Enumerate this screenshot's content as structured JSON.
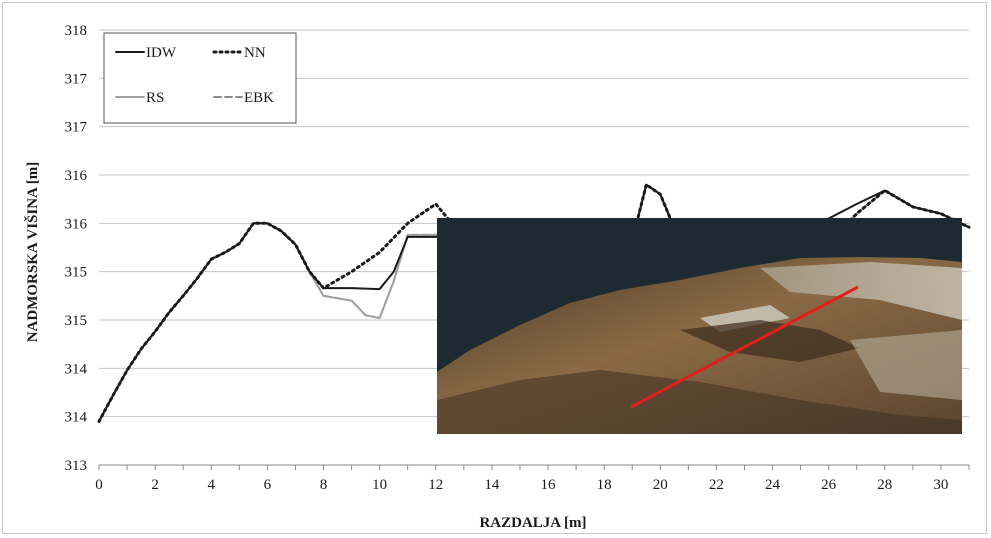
{
  "chart_data": {
    "type": "line",
    "xlabel": "RAZDALJA [m]",
    "ylabel": "NADMORSKA VIŠINA [m]",
    "x_ticks": [
      "0",
      "2",
      "4",
      "6",
      "8",
      "10",
      "12",
      "14",
      "16",
      "18",
      "20",
      "22",
      "24",
      "26",
      "28",
      "30"
    ],
    "y_ticks": [
      "313",
      "314",
      "314",
      "315",
      "315",
      "316",
      "316",
      "317",
      "317",
      "318"
    ],
    "xlim": [
      0,
      31
    ],
    "ylim": [
      313,
      317.5
    ],
    "grid": "horizontal",
    "legend_position": "top-left",
    "series": [
      {
        "name": "IDW",
        "style": "solid",
        "color": "#1a1a1a",
        "points": [
          [
            0,
            313.45
          ],
          [
            0.5,
            313.72
          ],
          [
            1,
            313.98
          ],
          [
            1.5,
            314.2
          ],
          [
            2,
            314.38
          ],
          [
            2.5,
            314.58
          ],
          [
            3,
            314.75
          ],
          [
            3.5,
            314.93
          ],
          [
            4,
            315.13
          ],
          [
            4.5,
            315.2
          ],
          [
            5,
            315.29
          ],
          [
            5.5,
            315.5
          ],
          [
            6,
            315.5
          ],
          [
            6.5,
            315.42
          ],
          [
            7,
            315.28
          ],
          [
            7.5,
            315.0
          ],
          [
            8,
            314.83
          ],
          [
            9,
            314.83
          ],
          [
            10,
            314.82
          ],
          [
            10.5,
            315.0
          ],
          [
            11,
            315.36
          ],
          [
            12,
            315.36
          ],
          [
            13,
            315.35
          ],
          [
            13.5,
            315.35
          ],
          [
            14,
            315.43
          ],
          [
            15,
            315.38
          ],
          [
            16,
            315.4
          ],
          [
            17,
            315.38
          ],
          [
            17.5,
            315.4
          ],
          [
            18,
            315.36
          ],
          [
            19,
            315.32
          ],
          [
            19.5,
            315.9
          ],
          [
            20,
            315.8
          ],
          [
            20.5,
            315.45
          ],
          [
            21,
            315.38
          ],
          [
            22,
            315.45
          ],
          [
            23,
            315.45
          ],
          [
            23.5,
            315.38
          ],
          [
            24,
            314.97
          ],
          [
            24.5,
            314.82
          ],
          [
            25,
            314.8
          ],
          [
            25.5,
            314.97
          ],
          [
            26,
            315.55
          ],
          [
            27,
            315.7
          ],
          [
            28,
            315.84
          ],
          [
            29,
            315.67
          ],
          [
            30,
            315.6
          ],
          [
            31,
            315.46
          ]
        ]
      },
      {
        "name": "NN",
        "style": "dotted",
        "color": "#1a1a1a",
        "points": [
          [
            0,
            313.45
          ],
          [
            0.5,
            313.72
          ],
          [
            1,
            313.98
          ],
          [
            1.5,
            314.2
          ],
          [
            2,
            314.38
          ],
          [
            2.5,
            314.58
          ],
          [
            3,
            314.75
          ],
          [
            3.5,
            314.93
          ],
          [
            4,
            315.13
          ],
          [
            4.5,
            315.2
          ],
          [
            5,
            315.29
          ],
          [
            5.5,
            315.5
          ],
          [
            6,
            315.5
          ],
          [
            6.5,
            315.42
          ],
          [
            7,
            315.28
          ],
          [
            7.5,
            315.0
          ],
          [
            8,
            314.83
          ],
          [
            9,
            315.0
          ],
          [
            10,
            315.2
          ],
          [
            11,
            315.5
          ],
          [
            12,
            315.7
          ],
          [
            13,
            315.35
          ],
          [
            13.5,
            315.35
          ],
          [
            14,
            315.43
          ],
          [
            15,
            315.38
          ],
          [
            16,
            315.4
          ],
          [
            17,
            315.38
          ],
          [
            17.5,
            315.4
          ],
          [
            18,
            315.36
          ],
          [
            19,
            315.32
          ],
          [
            19.5,
            315.9
          ],
          [
            20,
            315.8
          ],
          [
            20.5,
            315.45
          ],
          [
            21,
            315.38
          ],
          [
            22,
            315.45
          ],
          [
            23,
            315.2
          ],
          [
            24,
            315.15
          ],
          [
            25,
            315.13
          ],
          [
            26,
            315.3
          ],
          [
            27,
            315.6
          ],
          [
            28,
            315.84
          ],
          [
            29,
            315.67
          ],
          [
            30,
            315.6
          ],
          [
            31,
            315.46
          ]
        ]
      },
      {
        "name": "RS",
        "style": "solid",
        "color": "#a0a0a0",
        "points": [
          [
            0,
            313.45
          ],
          [
            0.5,
            313.72
          ],
          [
            1,
            313.98
          ],
          [
            1.5,
            314.2
          ],
          [
            2,
            314.38
          ],
          [
            2.5,
            314.58
          ],
          [
            3,
            314.75
          ],
          [
            3.5,
            314.93
          ],
          [
            4,
            315.13
          ],
          [
            4.5,
            315.2
          ],
          [
            5,
            315.29
          ],
          [
            5.5,
            315.5
          ],
          [
            6,
            315.5
          ],
          [
            6.5,
            315.42
          ],
          [
            7,
            315.28
          ],
          [
            7.5,
            315.0
          ],
          [
            8,
            314.75
          ],
          [
            9,
            314.7
          ],
          [
            9.5,
            314.55
          ],
          [
            10,
            314.52
          ],
          [
            10.5,
            314.9
          ],
          [
            11,
            315.38
          ],
          [
            12,
            315.38
          ],
          [
            13,
            315.35
          ],
          [
            13.5,
            315.35
          ],
          [
            14,
            315.43
          ],
          [
            15,
            315.38
          ],
          [
            16,
            315.4
          ],
          [
            17,
            315.38
          ],
          [
            17.5,
            315.4
          ],
          [
            18,
            315.36
          ],
          [
            19,
            315.32
          ],
          [
            19.5,
            315.9
          ],
          [
            20,
            315.8
          ],
          [
            20.5,
            315.45
          ],
          [
            21,
            315.38
          ],
          [
            22,
            315.48
          ],
          [
            23,
            315.3
          ],
          [
            23.5,
            315.2
          ],
          [
            24,
            315.18
          ],
          [
            25,
            315.18
          ],
          [
            26,
            315.3
          ],
          [
            27,
            315.6
          ],
          [
            28,
            315.84
          ],
          [
            29,
            315.67
          ],
          [
            30,
            315.6
          ],
          [
            31,
            315.46
          ]
        ]
      },
      {
        "name": "EBK",
        "style": "dashed",
        "color": "#8c8c8c",
        "points": [
          [
            0,
            313.45
          ],
          [
            0.5,
            313.72
          ],
          [
            1,
            313.98
          ],
          [
            1.5,
            314.2
          ],
          [
            2,
            314.38
          ],
          [
            2.5,
            314.58
          ],
          [
            3,
            314.75
          ],
          [
            3.5,
            314.93
          ],
          [
            4,
            315.13
          ],
          [
            4.5,
            315.2
          ],
          [
            5,
            315.29
          ],
          [
            5.5,
            315.5
          ],
          [
            6,
            315.5
          ],
          [
            6.5,
            315.42
          ],
          [
            7,
            315.28
          ],
          [
            7.5,
            315.0
          ],
          [
            8,
            314.75
          ],
          [
            9,
            314.7
          ],
          [
            9.5,
            314.55
          ],
          [
            10,
            314.52
          ],
          [
            10.5,
            314.9
          ],
          [
            11,
            315.38
          ],
          [
            12,
            315.38
          ],
          [
            13,
            315.35
          ],
          [
            13.5,
            315.35
          ],
          [
            14,
            315.43
          ],
          [
            15,
            315.38
          ],
          [
            16,
            315.4
          ],
          [
            17,
            315.38
          ],
          [
            17.5,
            315.4
          ],
          [
            18,
            315.36
          ],
          [
            19,
            315.32
          ],
          [
            19.5,
            315.9
          ],
          [
            20,
            315.8
          ],
          [
            20.5,
            315.45
          ],
          [
            21,
            315.38
          ],
          [
            22,
            315.48
          ],
          [
            23,
            315.3
          ],
          [
            23.5,
            315.2
          ],
          [
            24,
            315.18
          ],
          [
            25,
            315.18
          ],
          [
            26,
            315.3
          ],
          [
            27,
            315.6
          ],
          [
            28,
            315.84
          ],
          [
            29,
            315.67
          ],
          [
            30,
            315.6
          ],
          [
            31,
            315.46
          ]
        ]
      }
    ],
    "inset": {
      "content": "terrain-photo",
      "colors": {
        "sky": "#1e2a32",
        "terrain": "#8a6a45",
        "highlight": "#c9c3b5",
        "profile_line": "#e0201c"
      }
    }
  }
}
